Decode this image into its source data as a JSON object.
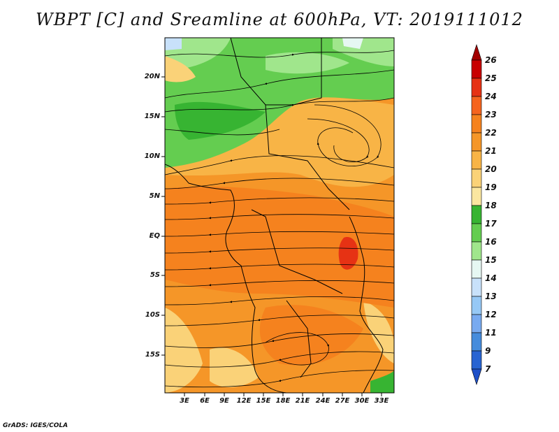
{
  "title": "WBPT [C] and Sreamline at 600hPa, VT: 2019111012",
  "footer": "GrADS: IGES/COLA",
  "map": {
    "lat_labels": [
      "20N",
      "15N",
      "10N",
      "5N",
      "EQ",
      "5S",
      "10S",
      "15S"
    ],
    "lon_labels": [
      "3E",
      "6E",
      "9E",
      "12E",
      "15E",
      "18E",
      "21E",
      "24E",
      "27E",
      "30E",
      "33E"
    ]
  },
  "colorbar": {
    "labels": [
      "26",
      "25",
      "24",
      "23",
      "22",
      "21",
      "20",
      "19",
      "18",
      "17",
      "16",
      "15",
      "14",
      "13",
      "12",
      "11",
      "9",
      "7"
    ],
    "colors": [
      "#a30000",
      "#c80000",
      "#e63214",
      "#f5641e",
      "#f5821e",
      "#f59628",
      "#f8b446",
      "#fad278",
      "#fae6a0",
      "#37b432",
      "#64cd50",
      "#a0e68c",
      "#e6f7f2",
      "#c8e1fa",
      "#96c8f5",
      "#78aaf0",
      "#468cdc",
      "#2864d2",
      "#1e50c8"
    ]
  }
}
